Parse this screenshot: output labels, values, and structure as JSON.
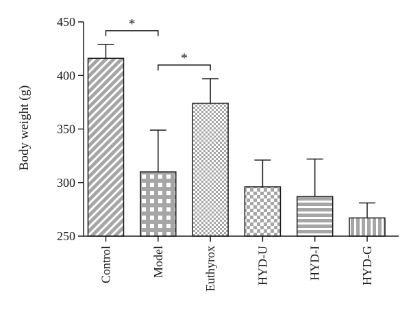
{
  "chart_data": {
    "type": "bar",
    "title": "",
    "xlabel": "",
    "ylabel": "Body weight (g)",
    "ylim": [
      250,
      450
    ],
    "yticks": [
      250,
      300,
      350,
      400,
      450
    ],
    "grid": false,
    "categories": [
      "Control",
      "Model",
      "Euthyrox",
      "HYD-U",
      "HYD-I",
      "HYD-G"
    ],
    "values": [
      416,
      310,
      374,
      296,
      287,
      267
    ],
    "error_upper": [
      13,
      39,
      23,
      25,
      35,
      14
    ],
    "patterns": [
      "diagonal-stripes",
      "checker-grid",
      "fine-checker",
      "checker-large",
      "horizontal-stripes",
      "vertical-stripes"
    ],
    "significance": [
      {
        "from": "Control",
        "to": "Model",
        "label": "*"
      },
      {
        "from": "Model",
        "to": "Euthyrox",
        "label": "*"
      }
    ]
  },
  "colors": {
    "bar_fill": "#a6a6a6",
    "bar_light": "#ffffff",
    "axis": "#1a1a1a"
  }
}
